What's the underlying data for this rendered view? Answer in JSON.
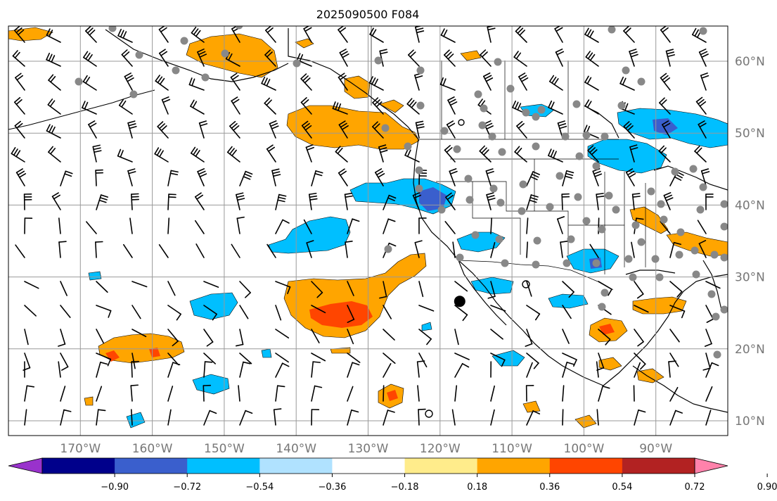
{
  "title": "2025090500 F084",
  "map": {
    "lat_labels": [
      "60°N",
      "50°N",
      "40°N",
      "30°N",
      "20°N",
      "10°N"
    ],
    "lat_values": [
      60,
      50,
      40,
      30,
      20,
      10
    ],
    "lon_labels": [
      "170°W",
      "160°W",
      "150°W",
      "140°W",
      "130°W",
      "120°W",
      "110°W",
      "100°W",
      "90°W"
    ],
    "lon_values": [
      -170,
      -160,
      -150,
      -140,
      -130,
      -120,
      -110,
      -100,
      -90
    ],
    "extent": {
      "lon_min": -180,
      "lon_max": -80,
      "lat_min": 8,
      "lat_max": 65
    },
    "gridlines": true,
    "coastline_color": "#000000",
    "grid_color": "#999999"
  },
  "colorbar": {
    "tick_labels": [
      "−0.90",
      "−0.72",
      "−0.54",
      "−0.36",
      "−0.18",
      "0.18",
      "0.36",
      "0.54",
      "0.72",
      "0.90"
    ],
    "levels": [
      -0.9,
      -0.72,
      -0.54,
      -0.36,
      -0.18,
      0.18,
      0.36,
      0.54,
      0.72,
      0.9
    ],
    "colors": [
      "#9932cc",
      "#00008b",
      "#3a5fcd",
      "#00bfff",
      "#b0e2ff",
      "#ffffff",
      "#ffec8b",
      "#ffa500",
      "#ff4500",
      "#b22222",
      "#ff82ab"
    ],
    "extend": "both"
  },
  "anomaly_colors": {
    "positive_light": "#ffa500",
    "positive_strong": "#ff4500",
    "negative_light": "#00bfff",
    "negative_strong": "#3a5fcd"
  },
  "fields": {
    "wind_barbs": "black",
    "station_markers": "gray",
    "highlight_marker": {
      "lon": -120,
      "lat": 27,
      "color": "#000000"
    }
  }
}
